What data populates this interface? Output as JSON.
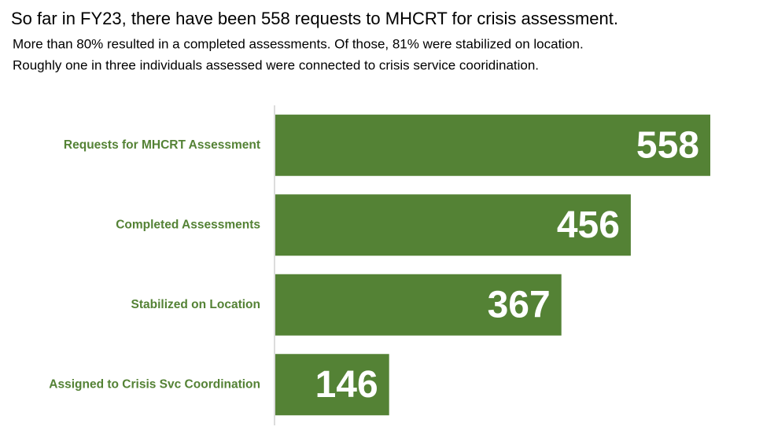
{
  "chart_data": {
    "type": "bar",
    "orientation": "horizontal",
    "title": "So far in FY23, there have been 558 requests to MHCRT for crisis assessment.",
    "subtitle": [
      "More than 80% resulted in a completed assessments.  Of those, 81% were stabilized on location.",
      "Roughly one in three individuals assessed were connected to crisis service cooridination."
    ],
    "categories": [
      "Requests for MHCRT Assessment",
      "Completed Assessments",
      "Stabilized on Location",
      "Assigned to Crisis Svc Coordination"
    ],
    "values": [
      558,
      456,
      367,
      146
    ],
    "color": "#548235",
    "label_color": "#548235"
  }
}
